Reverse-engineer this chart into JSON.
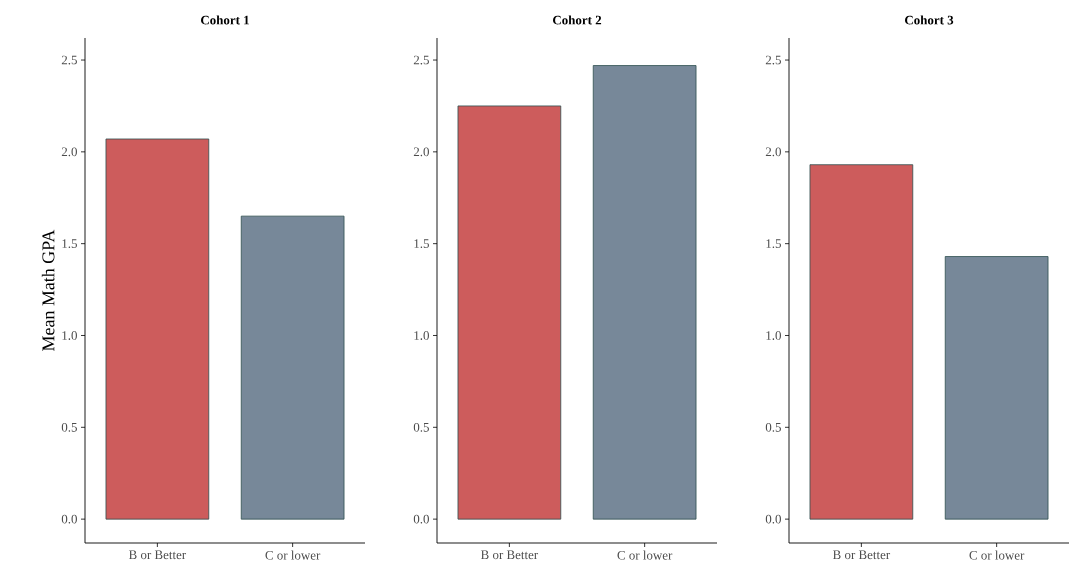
{
  "chart_data": [
    {
      "type": "bar",
      "title": "Cohort 1",
      "ylabel": "Mean Math GPA",
      "categories": [
        "B or Better",
        "C or lower"
      ],
      "values": [
        2.07,
        1.65
      ],
      "colors": [
        "#cd5c5c",
        "#778899"
      ],
      "ylim": [
        -0.13,
        2.62
      ],
      "yticks": [
        {
          "value": 0,
          "label": "0.0"
        },
        0.5,
        {
          "value": 1,
          "label": "1.0"
        },
        1.5,
        {
          "value": 2,
          "label": "2.0"
        },
        2.5
      ]
    },
    {
      "type": "bar",
      "title": "Cohort 2",
      "categories": [
        "B or Better",
        "C or lower"
      ],
      "values": [
        2.25,
        2.47
      ],
      "colors": [
        "#cd5c5c",
        "#778899"
      ],
      "ylim": [
        -0.13,
        2.62
      ],
      "yticks": [
        {
          "value": 0,
          "label": "0.0"
        },
        0.5,
        {
          "value": 1,
          "label": "1.0"
        },
        1.5,
        {
          "value": 2,
          "label": "2.0"
        },
        2.5
      ]
    },
    {
      "type": "bar",
      "title": "Cohort 3",
      "categories": [
        "B or Better",
        "C or lower"
      ],
      "values": [
        1.93,
        1.43
      ],
      "colors": [
        "#cd5c5c",
        "#778899"
      ],
      "ylim": [
        -0.13,
        2.62
      ],
      "yticks": [
        {
          "value": 0,
          "label": "0.0"
        },
        0.5,
        {
          "value": 1,
          "label": "1.0"
        },
        1.5,
        {
          "value": 2,
          "label": "2.0"
        },
        2.5
      ]
    }
  ]
}
